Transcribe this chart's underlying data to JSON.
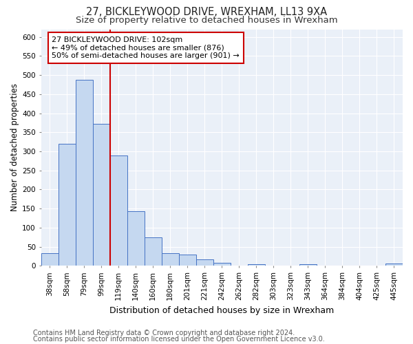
{
  "title1": "27, BICKLEYWOOD DRIVE, WREXHAM, LL13 9XA",
  "title2": "Size of property relative to detached houses in Wrexham",
  "xlabel": "Distribution of detached houses by size in Wrexham",
  "ylabel": "Number of detached properties",
  "categories": [
    "38sqm",
    "58sqm",
    "79sqm",
    "99sqm",
    "119sqm",
    "140sqm",
    "160sqm",
    "180sqm",
    "201sqm",
    "221sqm",
    "242sqm",
    "262sqm",
    "282sqm",
    "303sqm",
    "323sqm",
    "343sqm",
    "364sqm",
    "384sqm",
    "404sqm",
    "425sqm",
    "445sqm"
  ],
  "values": [
    33,
    320,
    487,
    373,
    290,
    143,
    75,
    33,
    30,
    17,
    8,
    0,
    5,
    0,
    0,
    5,
    0,
    0,
    0,
    0,
    7
  ],
  "bar_color": "#c5d8f0",
  "bar_edge_color": "#4472c4",
  "vline_color": "#cc0000",
  "annotation_text": "27 BICKLEYWOOD DRIVE: 102sqm\n← 49% of detached houses are smaller (876)\n50% of semi-detached houses are larger (901) →",
  "annotation_box_color": "#ffffff",
  "annotation_box_edge": "#cc0000",
  "footer1": "Contains HM Land Registry data © Crown copyright and database right 2024.",
  "footer2": "Contains public sector information licensed under the Open Government Licence v3.0.",
  "ylim": [
    0,
    620
  ],
  "yticks": [
    0,
    50,
    100,
    150,
    200,
    250,
    300,
    350,
    400,
    450,
    500,
    550,
    600
  ],
  "bg_color": "#eaf0f8",
  "grid_color": "#ffffff",
  "title1_fontsize": 10.5,
  "title2_fontsize": 9.5,
  "xlabel_fontsize": 9,
  "ylabel_fontsize": 8.5,
  "tick_fontsize": 7.5,
  "annotation_fontsize": 8,
  "footer_fontsize": 7
}
